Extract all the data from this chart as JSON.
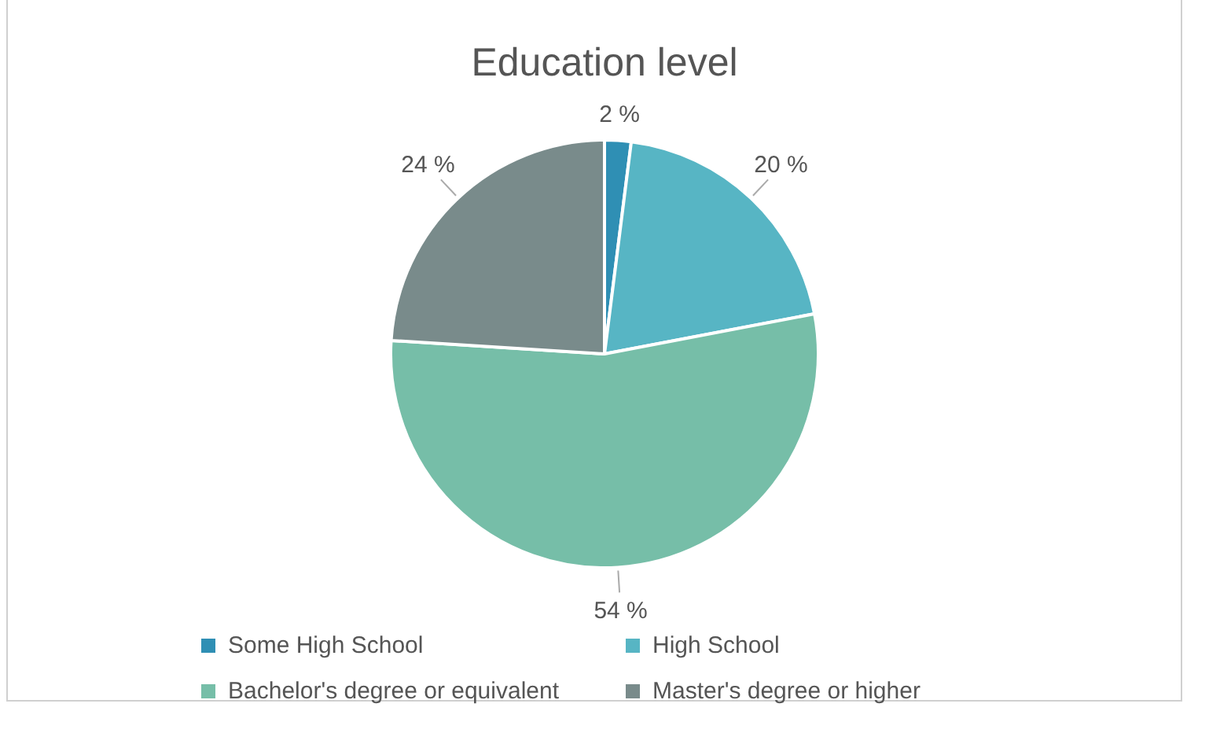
{
  "chart_data": {
    "type": "pie",
    "title": "Education level",
    "categories": [
      "Some High School",
      "High School",
      "Bachelor's degree or equivalent",
      "Master's degree or higher"
    ],
    "values": [
      2,
      20,
      54,
      24
    ],
    "colors": [
      "#2f8fb4",
      "#57b5c4",
      "#76bea8",
      "#798b8b"
    ],
    "value_labels": [
      "2 %",
      "20 %",
      "54 %",
      "24 %"
    ],
    "legend": "bottom"
  }
}
